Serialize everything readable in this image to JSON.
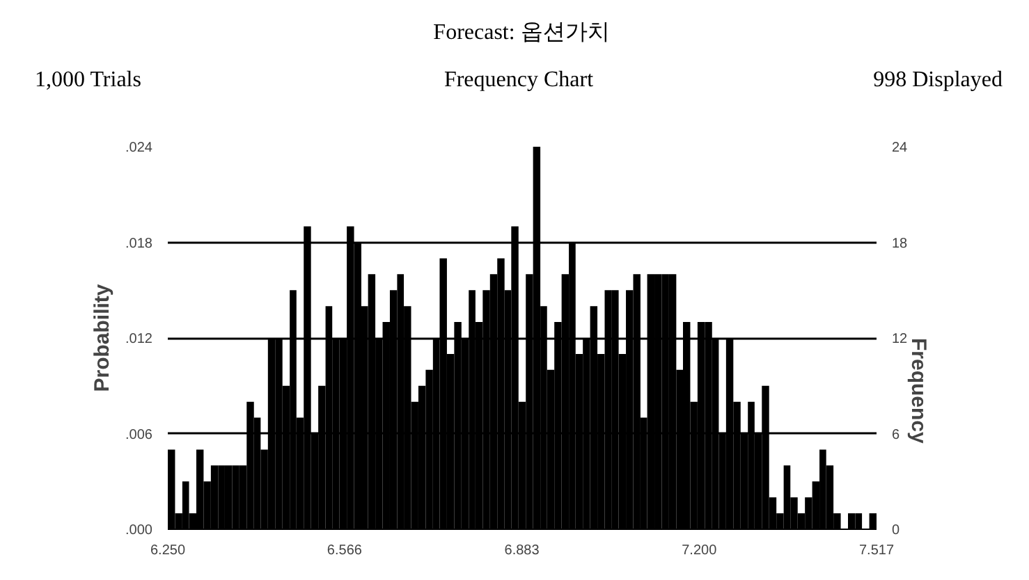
{
  "chart_data": {
    "type": "histogram",
    "title": "Forecast: 옵션가치",
    "subtitle": "Frequency Chart",
    "annotations": [
      "1,000 Trials",
      "998 Displayed"
    ],
    "ylabel": "Probability",
    "y2label": "Frequency",
    "bins": [
      6.25,
      6.263,
      6.276,
      6.288,
      6.301,
      6.314,
      6.327,
      6.34,
      6.352,
      6.365,
      6.378,
      6.391,
      6.404,
      6.416,
      6.429,
      6.442,
      6.455,
      6.468,
      6.48,
      6.493,
      6.506,
      6.519,
      6.532,
      6.544,
      6.557,
      6.57,
      6.583,
      6.596,
      6.608,
      6.621,
      6.634,
      6.647,
      6.66,
      6.672,
      6.685,
      6.698,
      6.711,
      6.724,
      6.736,
      6.749,
      6.762,
      6.775,
      6.788,
      6.8,
      6.813,
      6.826,
      6.839,
      6.852,
      6.864,
      6.877,
      6.89,
      6.903,
      6.916,
      6.928,
      6.941,
      6.954,
      6.967,
      6.979,
      6.992,
      7.005,
      7.018,
      7.031,
      7.043,
      7.056,
      7.069,
      7.082,
      7.095,
      7.107,
      7.12,
      7.133,
      7.146,
      7.159,
      7.171,
      7.184,
      7.197,
      7.21,
      7.223,
      7.235,
      7.248,
      7.261,
      7.274,
      7.287,
      7.299,
      7.312,
      7.325,
      7.338,
      7.351,
      7.363,
      7.376,
      7.389,
      7.402,
      7.415,
      7.427,
      7.44,
      7.453,
      7.466,
      7.479,
      7.491,
      7.504,
      7.517
    ],
    "series": [
      {
        "axis": "y2",
        "color": "#000000",
        "values": [
          5,
          1,
          3,
          1,
          5,
          3,
          4,
          4,
          4,
          4,
          4,
          8,
          7,
          5,
          12,
          12,
          9,
          15,
          7,
          19,
          6,
          9,
          14,
          12,
          12,
          19,
          18,
          14,
          16,
          12,
          13,
          15,
          16,
          14,
          8,
          9,
          10,
          12,
          17,
          11,
          13,
          12,
          15,
          13,
          15,
          16,
          17,
          15,
          19,
          8,
          16,
          24,
          14,
          10,
          13,
          16,
          18,
          11,
          12,
          14,
          11,
          15,
          15,
          11,
          15,
          16,
          7,
          16,
          16,
          16,
          16,
          10,
          13,
          8,
          13,
          13,
          12,
          6,
          12,
          8,
          6,
          8,
          6,
          9,
          2,
          1,
          4,
          2,
          1,
          2,
          3,
          5,
          4,
          1,
          0,
          1,
          1,
          0,
          1
        ]
      }
    ],
    "xlim": [
      6.25,
      7.517
    ],
    "xticks": [
      {
        "value": 6.25,
        "label": "6.250"
      },
      6.566,
      6.883,
      {
        "value": 7.2,
        "label": "7.200"
      },
      7.517
    ],
    "ylim": [
      0,
      0.024
    ],
    "yticks": [
      {
        "value": 0,
        "label": ".000"
      },
      {
        "value": 0.006,
        "label": ".006"
      },
      {
        "value": 0.012,
        "label": ".012"
      },
      {
        "value": 0.018,
        "label": ".018"
      },
      {
        "value": 0.024,
        "label": ".024"
      }
    ],
    "y2lim": [
      0,
      24
    ],
    "y2ticks": [
      0,
      6,
      12,
      18,
      24
    ],
    "grid": "y"
  }
}
